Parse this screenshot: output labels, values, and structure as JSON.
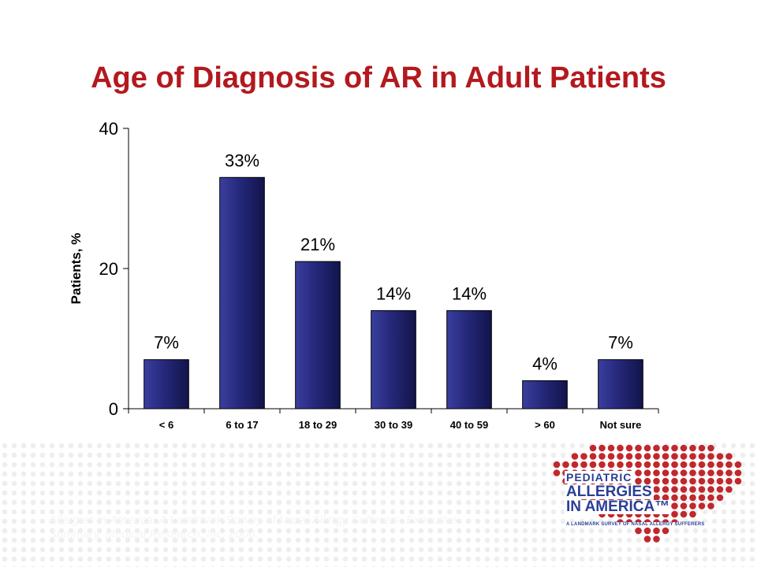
{
  "slide": {
    "title": "Age of Diagnosis of AR in Adult Patients",
    "title_color": "#b3191e",
    "footer_line1": "Allergies in America: A Landmark Survey of Nasal Allergy Sufferers. Executive",
    "footer_line2": "Summary. Medical Research. Inc. 2006."
  },
  "logo": {
    "line1": "PEDIATRIC",
    "line2": "ALLERGIES",
    "line3": "IN AMERICA™",
    "line4": "A LANDMARK SURVEY OF NASAL ALLERGY SUFFERERS",
    "text_color": "#2a3f96",
    "dot_color": "#c0282d"
  },
  "chart_data": {
    "type": "bar",
    "categories": [
      "< 6",
      "6 to 17",
      "18 to 29",
      "30 to 39",
      "40 to 59",
      "> 60",
      "Not sure"
    ],
    "values": [
      7,
      33,
      21,
      14,
      14,
      4,
      7
    ],
    "data_labels": [
      "7%",
      "33%",
      "21%",
      "14%",
      "14%",
      "4%",
      "7%"
    ],
    "ylabel": "Patients, %",
    "ylim": [
      0,
      40
    ],
    "yticks": [
      "0",
      "20",
      "40"
    ],
    "grid": false,
    "bar_color": "#25287a"
  }
}
